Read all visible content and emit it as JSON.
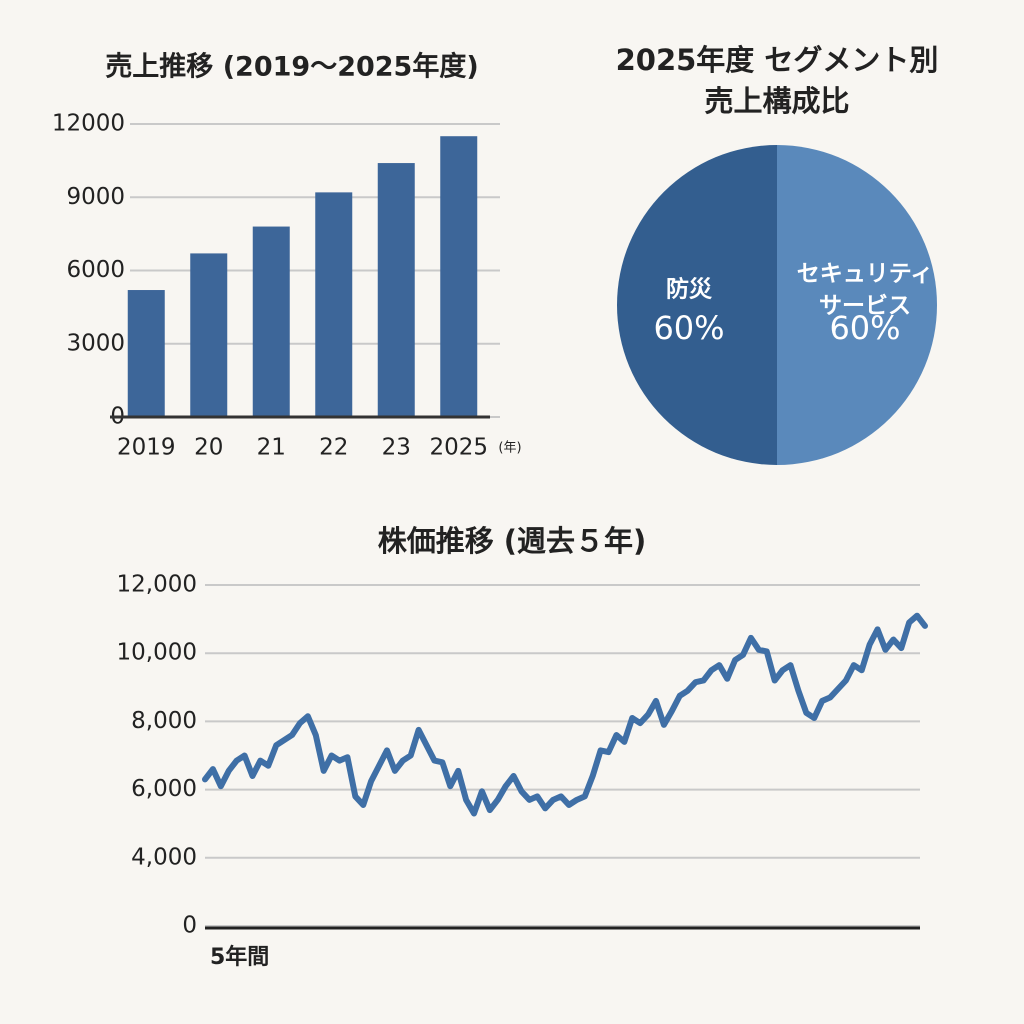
{
  "chart_data": [
    {
      "type": "bar",
      "title": "売上推移 (2019～2025年度)",
      "x_unit": "(年)",
      "categories": [
        "2019",
        "20",
        "21",
        "22",
        "23",
        "2025"
      ],
      "values": [
        5200,
        6700,
        7800,
        9200,
        10400,
        11500
      ],
      "color": "#3d6699",
      "ylim": [
        0,
        12000
      ],
      "yticks": [
        0,
        3000,
        6000,
        9000,
        12000
      ],
      "grid": true
    },
    {
      "type": "pie",
      "title": "2025年度 セグメント別\n売上構成比",
      "categories": [
        "セキュリティ\nサービス",
        "防災"
      ],
      "values": [
        60,
        60
      ],
      "value_labels": [
        "60%",
        "60%"
      ],
      "colors": [
        "#5a89bb",
        "#335e8f"
      ]
    },
    {
      "type": "line",
      "title": "株価推移 (週去５年)",
      "x_label": "5年間",
      "color": "#3f6fa6",
      "values": [
        6300,
        6600,
        6100,
        6550,
        6850,
        7000,
        6400,
        6850,
        6700,
        7300,
        7450,
        7600,
        7950,
        8150,
        7600,
        6550,
        7000,
        6850,
        6950,
        5800,
        5550,
        6250,
        6700,
        7150,
        6550,
        6850,
        7000,
        7750,
        7300,
        6850,
        6800,
        6100,
        6550,
        5700,
        5300,
        5950,
        5400,
        5700,
        6100,
        6400,
        5950,
        5700,
        5800,
        5450,
        5700,
        5800,
        5550,
        5700,
        5800,
        6400,
        7150,
        7100,
        7600,
        7400,
        8100,
        7950,
        8200,
        8600,
        7900,
        8300,
        8750,
        8900,
        9150,
        9200,
        9500,
        9650,
        9250,
        9800,
        9950,
        10450,
        10100,
        10050,
        9200,
        9500,
        9650,
        8900,
        8250,
        8100,
        8600,
        8700,
        8950,
        9200,
        9650,
        9500,
        10250,
        10700,
        10100,
        10400,
        10150,
        10900,
        11100,
        10800
      ],
      "ylim": [
        2000,
        12000
      ],
      "yticks": [
        0,
        {
          "value": 4000,
          "label": "4,000"
        },
        {
          "value": 6000,
          "label": "6,000"
        },
        {
          "value": 8000,
          "label": "8,000"
        },
        {
          "value": 10000,
          "label": "10,000"
        },
        {
          "value": 12000,
          "label": "12,000"
        }
      ],
      "grid": true
    }
  ]
}
